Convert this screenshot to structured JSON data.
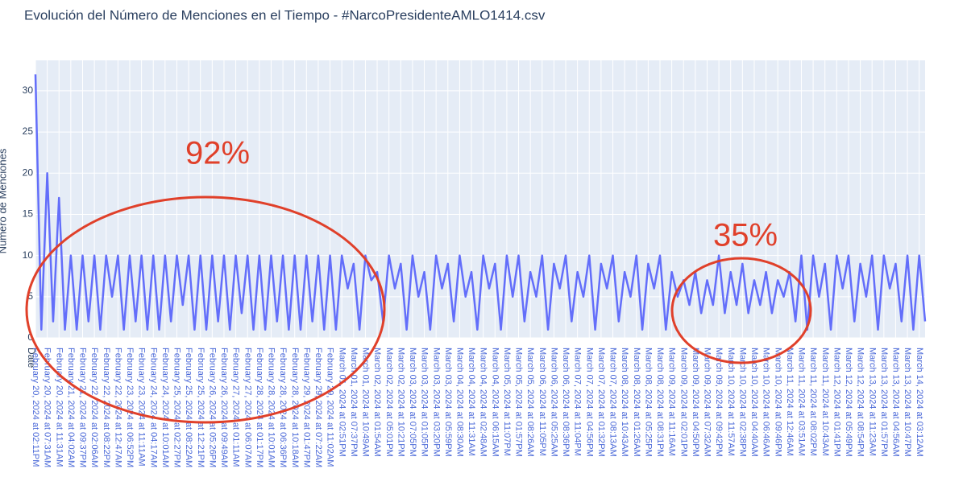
{
  "chart_data": {
    "type": "line",
    "title": "Evolución del Número de Menciones en el Tiempo - #NarcoPresidenteAMLO1414.csv",
    "x_label": "Date",
    "y_label": "Número de Menciones",
    "categories": [
      "February 20, 2024 at 02:11PM",
      null,
      "February 20, 2024 at 07:31AM",
      null,
      "February 20, 2024 at 11:31AM",
      null,
      "February 21, 2024 at 04:02AM",
      null,
      "February 21, 2024 at 09:37PM",
      null,
      "February 22, 2024 at 02:06AM",
      null,
      "February 22, 2024 at 08:22PM",
      null,
      "February 22, 2024 at 12:47AM",
      null,
      "February 23, 2024 at 06:52PM",
      null,
      "February 23, 2024 at 11:11AM",
      null,
      "February 24, 2024 at 04:17AM",
      null,
      "February 24, 2024 at 10:01AM",
      null,
      "February 25, 2024 at 02:27PM",
      null,
      "February 25, 2024 at 08:22AM",
      null,
      "February 25, 2024 at 12:21PM",
      null,
      "February 26, 2024 at 05:26PM",
      null,
      "February 26, 2024 at 09:49AM",
      null,
      "February 27, 2024 at 01:11AM",
      null,
      "February 27, 2024 at 06:07AM",
      null,
      "February 28, 2024 at 01:17PM",
      null,
      "February 28, 2024 at 10:01AM",
      null,
      "February 28, 2024 at 06:36PM",
      null,
      "February 28, 2024 at 10:18AM",
      null,
      "February 29, 2024 at 01:47PM",
      null,
      "February 29, 2024 at 07:22AM",
      null,
      "February 29, 2024 at 11:02AM",
      null,
      "March 01, 2024 at 02:51PM",
      null,
      "March 01, 2024 at 07:37PM",
      null,
      "March 01, 2024 at 10:49AM",
      null,
      "March 02, 2024 at 01:54AM",
      null,
      "March 02, 2024 at 05:01PM",
      null,
      "March 02, 2024 at 10:21PM",
      null,
      "March 03, 2024 at 07:05PM",
      null,
      "March 03, 2024 at 01:05PM",
      null,
      "March 03, 2024 at 03:20PM",
      null,
      "March 03, 2024 at 05:59PM",
      null,
      "March 04, 2024 at 08:30AM",
      null,
      "March 04, 2024 at 11:31AM",
      null,
      "March 04, 2024 at 02:48AM",
      null,
      "March 04, 2024 at 06:15AM",
      null,
      "March 05, 2024 at 11:07PM",
      null,
      "March 05, 2024 at 01:57PM",
      null,
      "March 05, 2024 at 08:26AM",
      null,
      "March 06, 2024 at 11:05PM",
      null,
      "March 06, 2024 at 05:25AM",
      null,
      "March 06, 2024 at 08:36PM",
      null,
      "March 07, 2024 at 11:04PM",
      null,
      "March 07, 2024 at 04:56PM",
      null,
      "March 07, 2024 at 01:32PM",
      null,
      "March 07, 2024 at 08:13AM",
      null,
      "March 08, 2024 at 10:43AM",
      null,
      "March 08, 2024 at 01:26AM",
      null,
      "March 08, 2024 at 05:25PM",
      null,
      "March 08, 2024 at 08:31PM",
      null,
      "March 09, 2024 at 11:16AM",
      null,
      "March 09, 2024 at 02:01PM",
      null,
      "March 09, 2024 at 04:50PM",
      null,
      "March 09, 2024 at 07:32AM",
      null,
      "March 09, 2024 at 09:42PM",
      null,
      "March 10, 2024 at 11:57AM",
      null,
      "March 10, 2024 at 02:38PM",
      null,
      "March 10, 2024 at 04:40AM",
      null,
      "March 10, 2024 at 06:46AM",
      null,
      "March 10, 2024 at 09:46PM",
      null,
      "March 11, 2024 at 12:46AM",
      null,
      "March 11, 2024 at 03:51AM",
      null,
      "March 11, 2024 at 08:02PM",
      null,
      "March 11, 2024 at 10:43AM",
      null,
      "March 12, 2024 at 01:41PM",
      null,
      "March 12, 2024 at 05:49PM",
      null,
      "March 12, 2024 at 08:54PM",
      null,
      "March 13, 2024 at 11:23AM",
      null,
      "March 13, 2024 at 01:57PM",
      null,
      "March 13, 2024 at 04:56AM",
      null,
      "March 13, 2024 at 10:47PM",
      null,
      "March 14, 2024 at 03:12AM",
      null
    ],
    "series": [
      {
        "color": "#636efa",
        "values": [
          32,
          1,
          20,
          2,
          17,
          1,
          10,
          1,
          10,
          2,
          10,
          1,
          10,
          5,
          10,
          1,
          10,
          2,
          10,
          1,
          10,
          1,
          10,
          2,
          10,
          4,
          10,
          1,
          10,
          1,
          10,
          2,
          10,
          1,
          10,
          3,
          10,
          1,
          10,
          1,
          10,
          2,
          10,
          1,
          10,
          1,
          10,
          2,
          10,
          1,
          10,
          1,
          10,
          6,
          9,
          1,
          10,
          7,
          8,
          2,
          10,
          6,
          9,
          1,
          10,
          5,
          8,
          1,
          10,
          6,
          9,
          2,
          10,
          5,
          8,
          1,
          10,
          6,
          9,
          1,
          10,
          5,
          10,
          2,
          8,
          5,
          10,
          1,
          9,
          6,
          10,
          2,
          8,
          5,
          10,
          1,
          9,
          6,
          10,
          2,
          8,
          5,
          10,
          1,
          9,
          6,
          10,
          1,
          8,
          5,
          7,
          4,
          8,
          3,
          7,
          4,
          10,
          3,
          8,
          4,
          9,
          3,
          7,
          4,
          8,
          3,
          7,
          5,
          8,
          2,
          10,
          1,
          10,
          5,
          9,
          1,
          10,
          6,
          10,
          2,
          9,
          5,
          10,
          1,
          10,
          6,
          9,
          2,
          10,
          1,
          10,
          2
        ]
      }
    ],
    "ylim": [
      0,
      33.7
    ],
    "yticks": [
      0,
      5,
      10,
      15,
      20,
      25,
      30
    ],
    "grid": true,
    "annotations": [
      {
        "text": "92%",
        "color": "#e0402a"
      },
      {
        "text": "35%",
        "color": "#e0402a"
      }
    ]
  }
}
